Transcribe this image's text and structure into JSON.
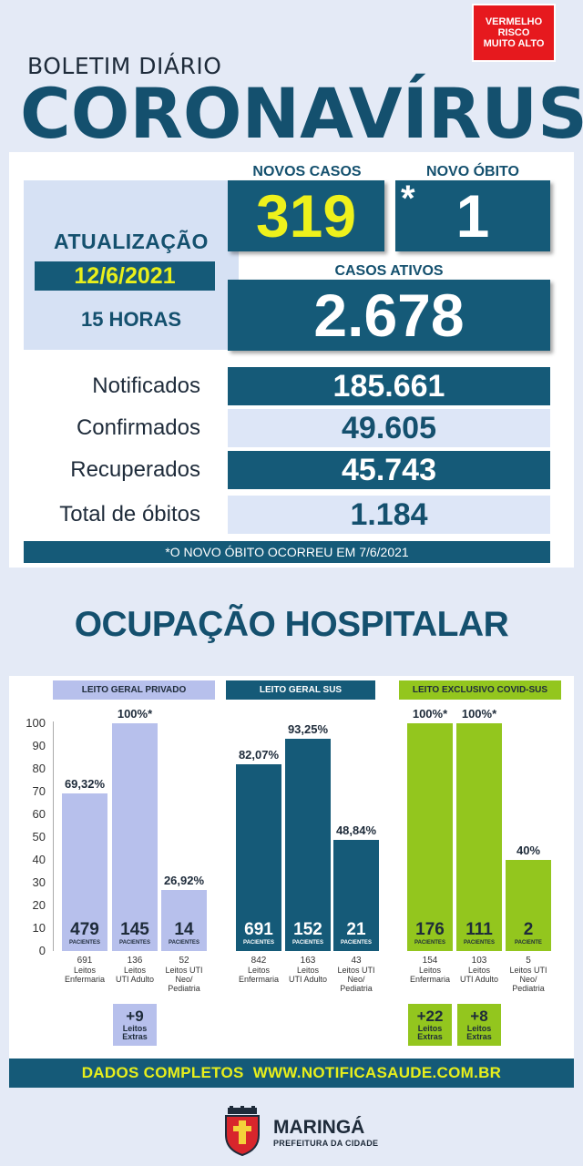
{
  "header": {
    "risk_badge": [
      "VERMELHO",
      "RISCO",
      "MUITO ALTO"
    ],
    "bulletin_label": "BOLETIM DIÁRIO",
    "title": "CORONAVÍRUS"
  },
  "update": {
    "title": "ATUALIZAÇÃO",
    "date": "12/6/2021",
    "time": "15 HORAS"
  },
  "kpis": {
    "new_cases_label": "NOVOS CASOS",
    "new_cases": "319",
    "new_death_label": "NOVO ÓBITO",
    "new_death": "1",
    "new_death_marker": "*",
    "active_label": "CASOS ATIVOS",
    "active": "2.678"
  },
  "summary_rows": [
    {
      "label": "Notificados",
      "value": "185.661"
    },
    {
      "label": "Confirmados",
      "value": "49.605"
    },
    {
      "label": "Recuperados",
      "value": "45.743"
    },
    {
      "label": "Total de óbitos",
      "value": "1.184"
    }
  ],
  "footnote": "*O NOVO ÓBITO OCORREU EM 7/6/2021",
  "hospital": {
    "title": "OCUPAÇÃO HOSPITALAR",
    "groups": [
      {
        "label": "LEITO GERAL PRIVADO"
      },
      {
        "label": "LEITO GERAL SUS"
      },
      {
        "label": "LEITO EXCLUSIVO COVID-SUS"
      }
    ],
    "patients_label": "PACIENTES",
    "patient_singular": "PACIENTE"
  },
  "chart_data": {
    "type": "bar",
    "ylim": [
      0,
      100
    ],
    "yticks": [
      0,
      10,
      20,
      30,
      40,
      50,
      60,
      70,
      80,
      90,
      100
    ],
    "bars": [
      {
        "group": "LEITO GERAL PRIVADO",
        "pct": 69.32,
        "pct_label": "69,32%",
        "patients": "479",
        "beds": "691",
        "bed_type": [
          "Leitos",
          "Enfermaria"
        ]
      },
      {
        "group": "LEITO GERAL PRIVADO",
        "pct": 100,
        "pct_label": "100%*",
        "patients": "145",
        "beds": "136",
        "bed_type": [
          "Leitos",
          "UTI Adulto"
        ]
      },
      {
        "group": "LEITO GERAL PRIVADO",
        "pct": 26.92,
        "pct_label": "26,92%",
        "patients": "14",
        "beds": "52",
        "bed_type": [
          "Leitos UTI",
          "Neo/",
          "Pediatria"
        ]
      },
      {
        "group": "LEITO GERAL SUS",
        "pct": 82.07,
        "pct_label": "82,07%",
        "patients": "691",
        "beds": "842",
        "bed_type": [
          "Leitos",
          "Enfermaria"
        ]
      },
      {
        "group": "LEITO GERAL SUS",
        "pct": 93.25,
        "pct_label": "93,25%",
        "patients": "152",
        "beds": "163",
        "bed_type": [
          "Leitos",
          "UTI Adulto"
        ]
      },
      {
        "group": "LEITO GERAL SUS",
        "pct": 48.84,
        "pct_label": "48,84%",
        "patients": "21",
        "beds": "43",
        "bed_type": [
          "Leitos UTI",
          "Neo/",
          "Pediatria"
        ]
      },
      {
        "group": "LEITO EXCLUSIVO COVID-SUS",
        "pct": 100,
        "pct_label": "100%*",
        "patients": "176",
        "beds": "154",
        "bed_type": [
          "Leitos",
          "Enfermaria"
        ]
      },
      {
        "group": "LEITO EXCLUSIVO COVID-SUS",
        "pct": 100,
        "pct_label": "100%*",
        "patients": "111",
        "beds": "103",
        "bed_type": [
          "Leitos",
          "UTI Adulto"
        ]
      },
      {
        "group": "LEITO EXCLUSIVO COVID-SUS",
        "pct": 40,
        "pct_label": "40%",
        "patients": "2",
        "beds": "5",
        "bed_type": [
          "Leitos UTI",
          "Neo/",
          "Pediatria"
        ]
      }
    ],
    "extras": [
      {
        "group": "LEITO GERAL PRIVADO",
        "value": "+9",
        "label": [
          "Leitos",
          "Extras"
        ]
      },
      {
        "group": "LEITO EXCLUSIVO COVID-SUS",
        "value": "+22",
        "label": [
          "Leitos",
          "Extras"
        ]
      },
      {
        "group": "LEITO EXCLUSIVO COVID-SUS",
        "value": "+8",
        "label": [
          "Leitos",
          "Extras"
        ]
      }
    ],
    "colors": {
      "private": "#b7c0ec",
      "sus": "#155a78",
      "covid": "#93c61e"
    }
  },
  "footer": {
    "banner_left": "DADOS COMPLETOS",
    "banner_right": "WWW.NOTIFICASAUDE.COM.BR",
    "city": "MARINGÁ",
    "city_sub": "PREFEITURA DA CIDADE"
  },
  "colors": {
    "brand_dark": "#155a78",
    "brand_light": "#dde6f7",
    "alert_red": "#e6191e",
    "highlight_yellow": "#e8ef1b"
  }
}
